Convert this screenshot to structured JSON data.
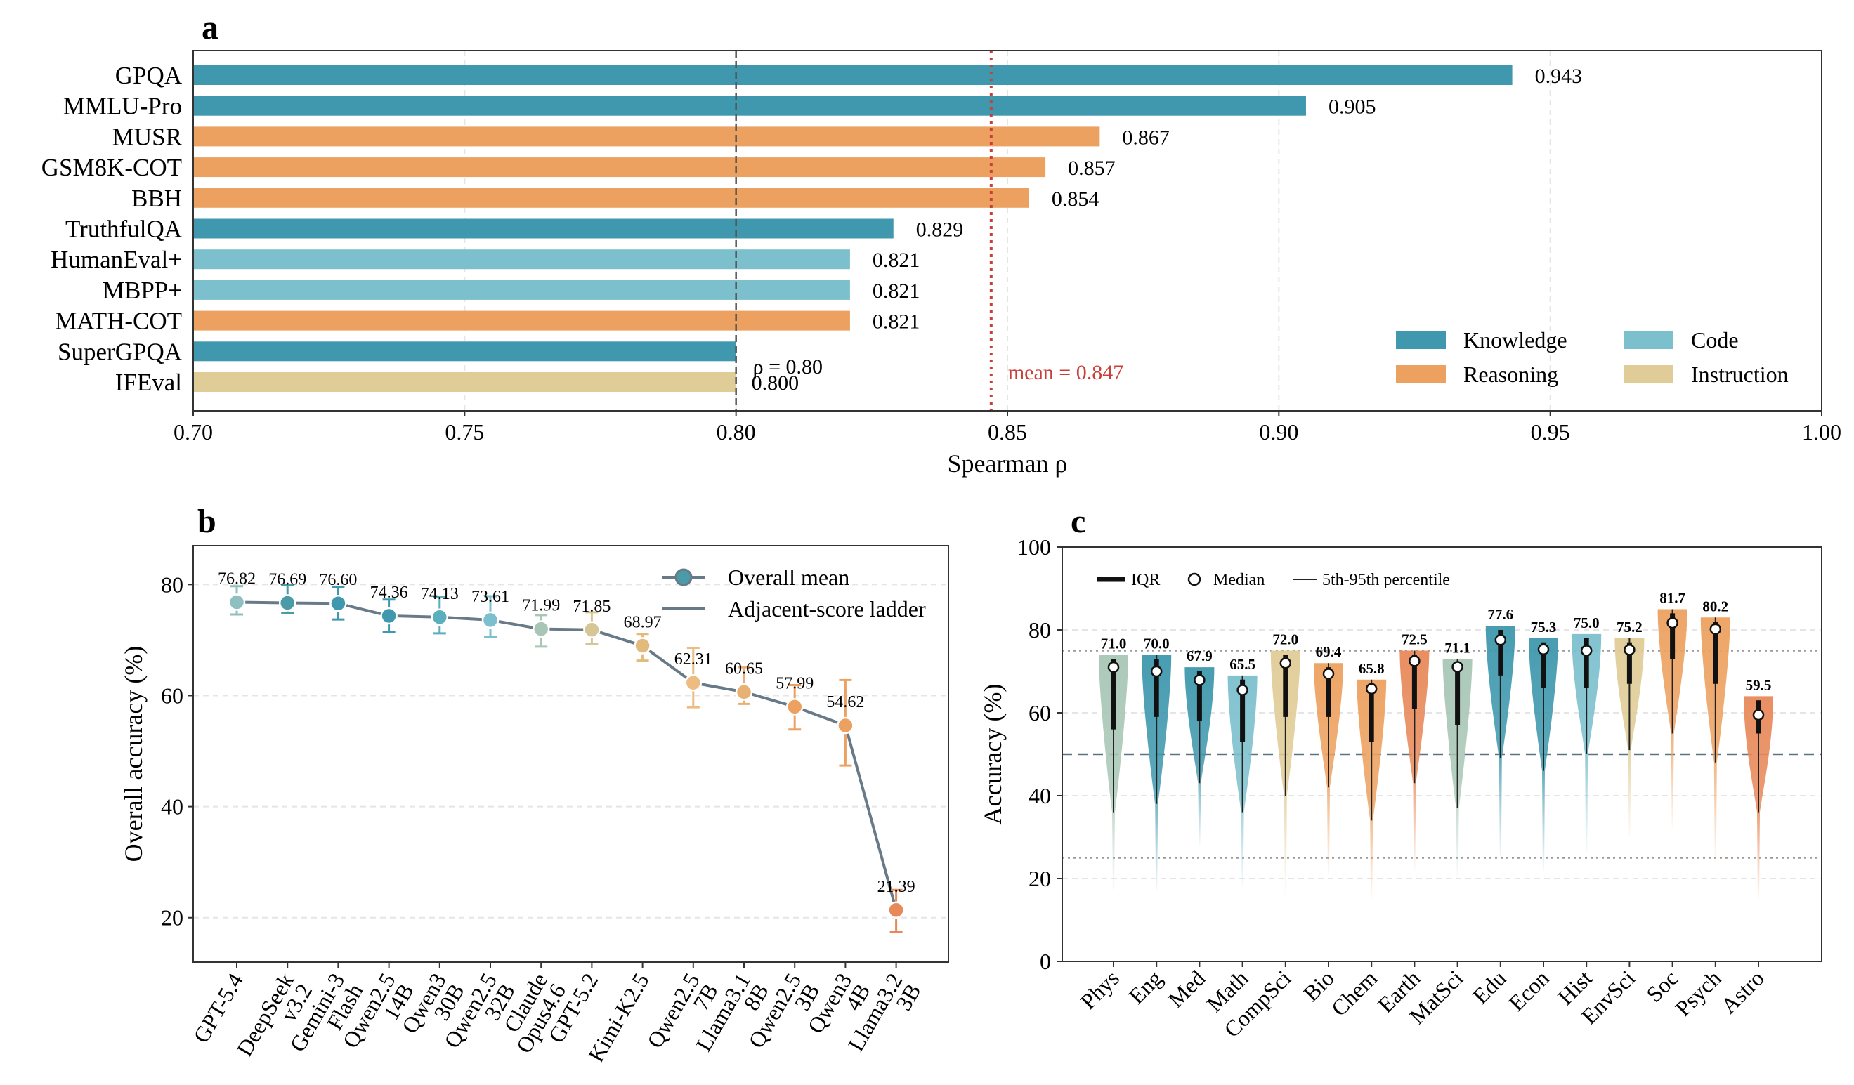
{
  "colors": {
    "knowledge": "#3f98ad",
    "reasoning": "#eda160",
    "code": "#7cc0cd",
    "instruction": "#e0cc97",
    "mean_line": "#c9403a",
    "threshold_line": "#555555",
    "ladder": "#687a87",
    "grid": "#e5e5e5"
  },
  "chart_data": [
    {
      "panel": "a",
      "type": "bar",
      "orientation": "horizontal",
      "categories": [
        "GPQA",
        "MMLU-Pro",
        "MUSR",
        "GSM8K-COT",
        "BBH",
        "TruthfulQA",
        "HumanEval+",
        "MBPP+",
        "MATH-COT",
        "SuperGPQA",
        "IFEval"
      ],
      "values": [
        0.943,
        0.905,
        0.867,
        0.857,
        0.854,
        0.829,
        0.821,
        0.821,
        0.821,
        0.8,
        0.8
      ],
      "value_labels": [
        "0.943",
        "0.905",
        "0.867",
        "0.857",
        "0.854",
        "0.829",
        "0.821",
        "0.821",
        "0.821",
        "",
        "0.800"
      ],
      "groups": [
        "Knowledge",
        "Knowledge",
        "Reasoning",
        "Reasoning",
        "Reasoning",
        "Knowledge",
        "Code",
        "Code",
        "Reasoning",
        "Knowledge",
        "Instruction"
      ],
      "xlabel": "Spearman ρ",
      "xlim": [
        0.7,
        1.0
      ],
      "xticks": [
        "0.70",
        "0.75",
        "0.80",
        "0.85",
        "0.90",
        "0.95",
        "1.00"
      ],
      "grid": "x-dashed",
      "threshold": {
        "value": 0.8,
        "label": "ρ = 0.80"
      },
      "mean": {
        "value": 0.847,
        "label": "mean = 0.847"
      },
      "legend": {
        "position": "bottom-right",
        "entries": [
          {
            "label": "Knowledge",
            "group": "knowledge"
          },
          {
            "label": "Reasoning",
            "group": "reasoning"
          },
          {
            "label": "Code",
            "group": "code"
          },
          {
            "label": "Instruction",
            "group": "instruction"
          }
        ]
      }
    },
    {
      "panel": "b",
      "type": "line",
      "categories": [
        "GPT-5.4",
        "DeepSeek\nv3.2",
        "Gemini-3\nFlash",
        "Qwen2.5\n14B",
        "Qwen3\n30B",
        "Qwen2.5\n32B",
        "Claude\nOpus4.6",
        "GPT-5.2",
        "Kimi-K2.5",
        "Qwen2.5\n7B",
        "Llama3.1\n8B",
        "Qwen2.5\n3B",
        "Qwen3\n4B",
        "Llama3.2\n3B"
      ],
      "values": [
        76.82,
        76.69,
        76.6,
        74.36,
        74.13,
        73.61,
        71.99,
        71.85,
        68.97,
        62.31,
        60.65,
        57.99,
        54.62,
        21.39
      ],
      "value_labels": [
        "76.82",
        "76.69",
        "76.60",
        "74.36",
        "74.13",
        "73.61",
        "71.99",
        "71.85",
        "68.97",
        "62.31",
        "60.65",
        "57.99",
        "54.62",
        "21.39"
      ],
      "error_low": [
        74.6,
        74.8,
        73.7,
        71.5,
        71.2,
        70.6,
        68.8,
        69.3,
        66.3,
        57.9,
        58.5,
        53.9,
        47.4,
        17.4
      ],
      "error_high": [
        79.7,
        79.9,
        79.6,
        77.3,
        77.7,
        77.9,
        74.5,
        75.0,
        71.1,
        68.6,
        65.1,
        61.9,
        62.8,
        25.0
      ],
      "point_colors": [
        "#8fbfbf",
        "#4b9aa8",
        "#3f98ad",
        "#3f98ad",
        "#5aafbd",
        "#7cc0cd",
        "#a8c6b5",
        "#d6c696",
        "#e2ba7c",
        "#edbc80",
        "#e9b073",
        "#eda160",
        "#eda160",
        "#e8895a"
      ],
      "ylabel": "Overall accuracy (%)",
      "ylim": [
        12,
        87
      ],
      "yticks": [
        20,
        40,
        60,
        80
      ],
      "grid": "y-dashed",
      "legend": {
        "position": "top-right",
        "entries": [
          "Overall mean",
          "Adjacent-score ladder"
        ]
      }
    },
    {
      "panel": "c",
      "type": "violin",
      "categories": [
        "Phys",
        "Eng",
        "Med",
        "Math",
        "CompSci",
        "Bio",
        "Chem",
        "Earth",
        "MatSci",
        "Edu",
        "Econ",
        "Hist",
        "EnvSci",
        "Soc",
        "Psych",
        "Astro"
      ],
      "medians": [
        71.0,
        70.0,
        67.9,
        65.5,
        72.0,
        69.4,
        65.8,
        72.5,
        71.1,
        77.6,
        75.3,
        75.0,
        75.2,
        81.7,
        80.2,
        59.5
      ],
      "median_labels": [
        "71.0",
        "70.0",
        "67.9",
        "65.5",
        "72.0",
        "69.4",
        "65.8",
        "72.5",
        "71.1",
        "77.6",
        "75.3",
        "75.0",
        "75.2",
        "81.7",
        "80.2",
        "59.5"
      ],
      "q1": [
        56,
        59,
        58,
        53,
        59,
        59,
        53,
        61,
        57,
        69,
        66,
        66,
        67,
        73,
        67,
        55
      ],
      "q3": [
        73,
        73,
        70,
        68,
        74,
        71,
        67,
        74,
        72,
        80,
        77,
        78,
        77,
        84,
        82,
        63
      ],
      "p5": [
        36,
        38,
        43,
        36,
        40,
        42,
        34,
        43,
        37,
        49,
        46,
        50,
        51,
        55,
        48,
        36
      ],
      "p95": [
        73,
        74,
        70,
        69,
        74,
        72,
        68,
        75,
        73,
        80,
        77,
        78,
        78,
        85,
        83,
        63
      ],
      "min": [
        17,
        17,
        28,
        18,
        16,
        21,
        15,
        22,
        20,
        25,
        22,
        26,
        30,
        32,
        24,
        15
      ],
      "colors": [
        "#a8c6b5",
        "#3f98ad",
        "#3f98ad",
        "#7cc0cd",
        "#e0cc97",
        "#eda160",
        "#eda160",
        "#e8895a",
        "#a8c6b5",
        "#3f98ad",
        "#3f98ad",
        "#7cc0cd",
        "#e0cc97",
        "#eda160",
        "#eda160",
        "#e8895a"
      ],
      "ylabel": "Accuracy (%)",
      "ylim": [
        0,
        100
      ],
      "yticks": [
        0,
        20,
        40,
        60,
        80,
        100
      ],
      "reference_lines": [
        25,
        50,
        75
      ],
      "grid": "y-dashed",
      "legend": {
        "position": "top-left",
        "entries": [
          "IQR",
          "Median",
          "5th-95th percentile"
        ]
      }
    }
  ]
}
